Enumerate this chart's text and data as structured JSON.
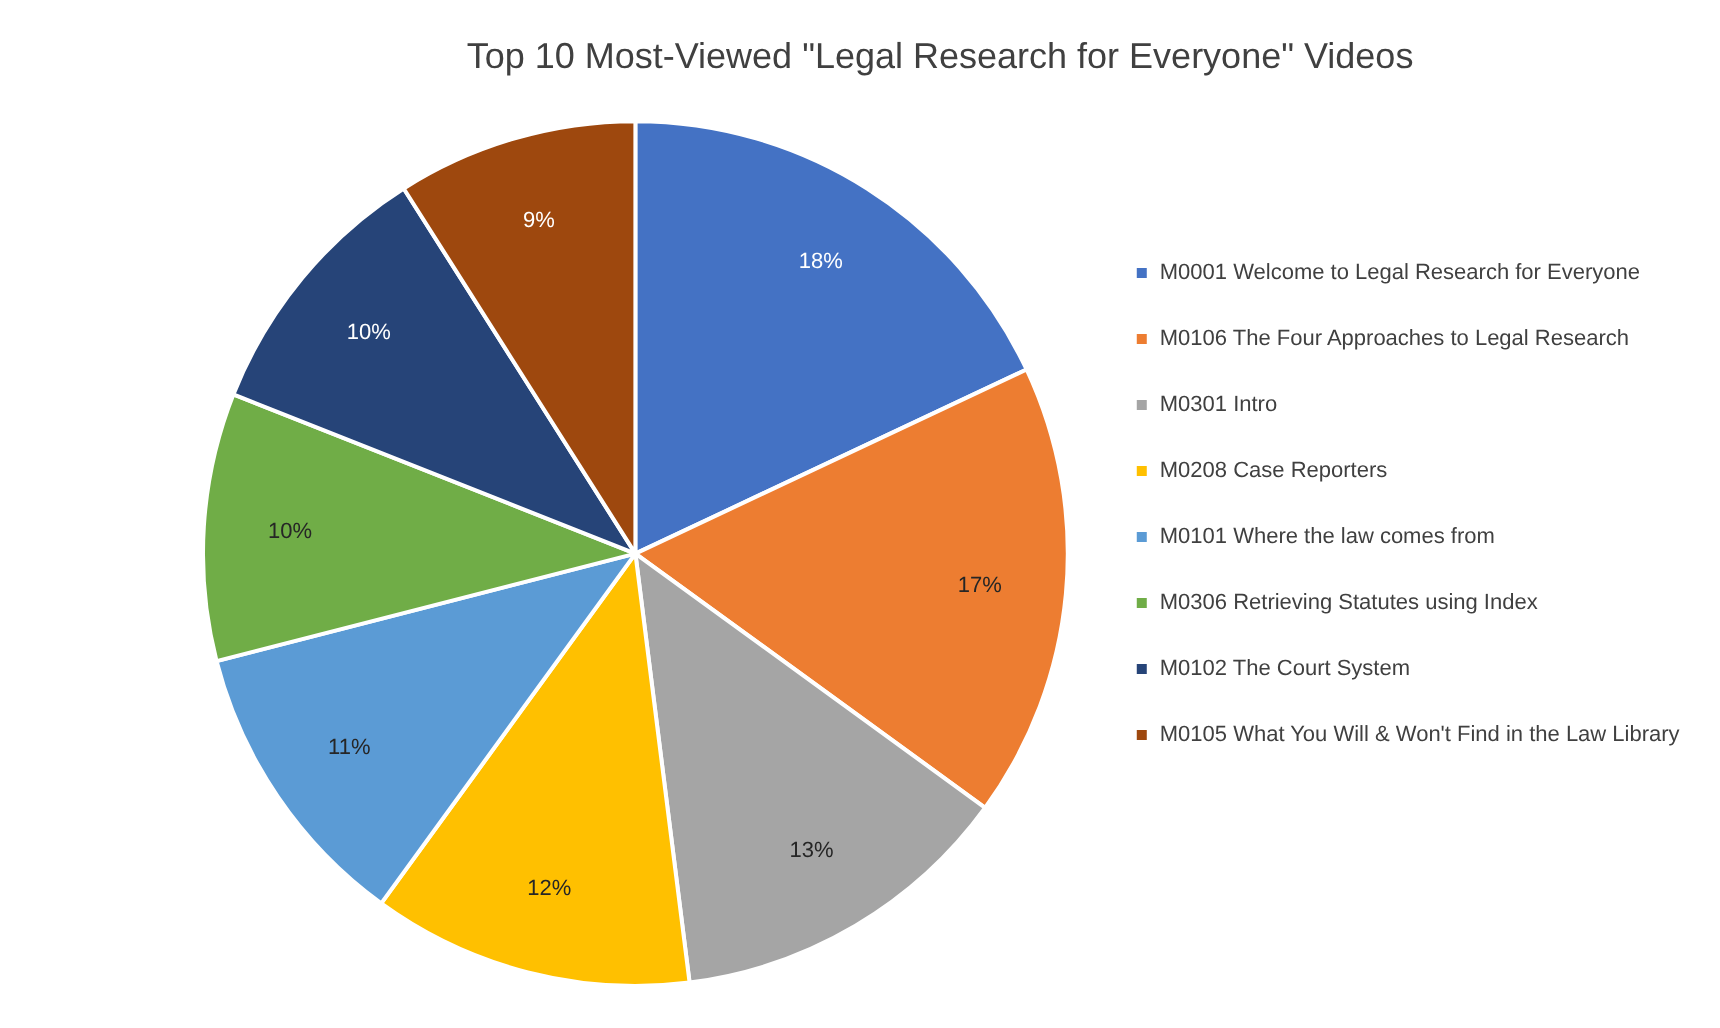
{
  "chart_data": {
    "type": "pie",
    "title": "Top 10 Most-Viewed \"Legal Research for Everyone\" Videos",
    "categories": [
      "M0001 Welcome to Legal Research for Everyone",
      "M0106 The Four Approaches to Legal Research",
      "M0301 Intro",
      "M0208 Case Reporters",
      "M0101 Where the law comes from",
      "M0306 Retrieving Statutes using Index",
      "M0102 The Court System",
      "M0105 What You Will & Won't Find in the Law Library"
    ],
    "values": [
      18,
      17,
      13,
      12,
      11,
      10,
      10,
      9
    ],
    "colors": [
      "#4472c4",
      "#ed7d31",
      "#a5a5a5",
      "#ffc000",
      "#5b9bd5",
      "#70ad47",
      "#264478",
      "#9e480e"
    ],
    "value_labels": [
      "18%",
      "17%",
      "13%",
      "12%",
      "11%",
      "10%",
      "10%",
      "9%"
    ],
    "legend": "right"
  }
}
